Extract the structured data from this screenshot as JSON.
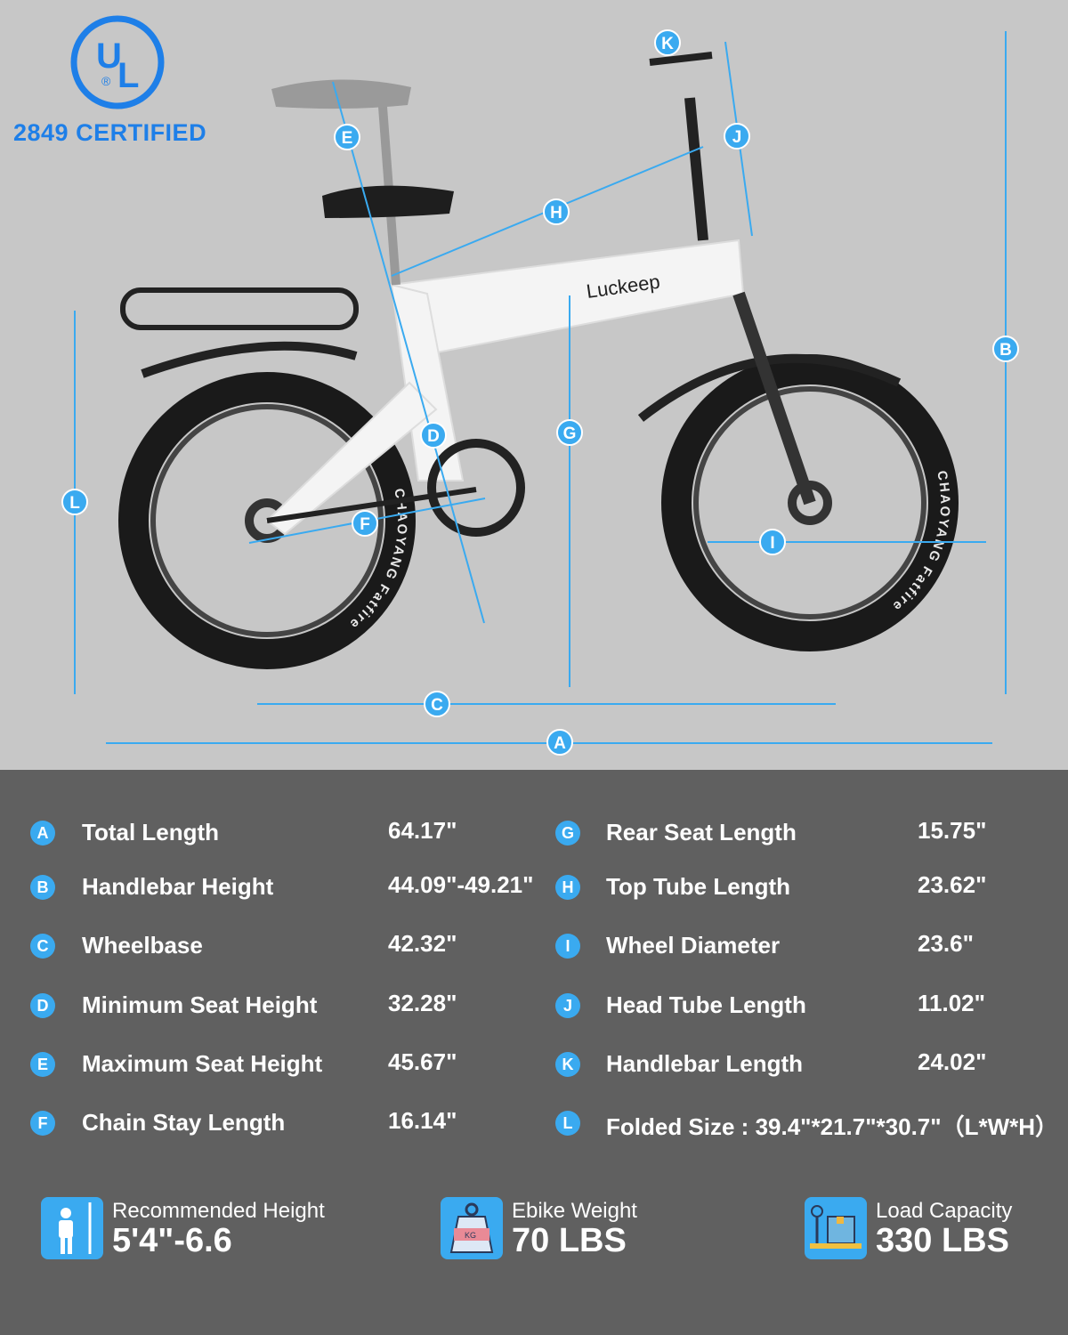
{
  "certification": {
    "logo_text": "UL",
    "label": "2849 CERTIFIED"
  },
  "brand": "Luckeep",
  "tire_text": "CHAOYANG Fatfire",
  "accent_color": "#3aaaf0",
  "diagram_markers": [
    "A",
    "B",
    "C",
    "D",
    "E",
    "F",
    "G",
    "H",
    "I",
    "J",
    "K",
    "L"
  ],
  "specs_left": [
    {
      "letter": "A",
      "label": "Total Length",
      "value": "64.17\""
    },
    {
      "letter": "B",
      "label": "Handlebar Height",
      "value": "44.09\"-49.21\""
    },
    {
      "letter": "C",
      "label": "Wheelbase",
      "value": "42.32\""
    },
    {
      "letter": "D",
      "label": "Minimum Seat Height",
      "value": "32.28\""
    },
    {
      "letter": "E",
      "label": "Maximum Seat Height",
      "value": "45.67\""
    },
    {
      "letter": "F",
      "label": "Chain Stay Length",
      "value": "16.14\""
    }
  ],
  "specs_right": [
    {
      "letter": "G",
      "label": "Rear Seat Length",
      "value": "15.75\""
    },
    {
      "letter": "H",
      "label": "Top Tube Length",
      "value": "23.62\""
    },
    {
      "letter": "I",
      "label": "Wheel Diameter",
      "value": "23.6\""
    },
    {
      "letter": "J",
      "label": "Head Tube Length",
      "value": "11.02\""
    },
    {
      "letter": "K",
      "label": "Handlebar Length",
      "value": "24.02\""
    },
    {
      "letter": "L",
      "label": "Folded Size : 39.4\"*21.7\"*30.7\"（L*W*H）",
      "value": ""
    }
  ],
  "stats": [
    {
      "icon": "person-height-icon",
      "label": "Recommended Height",
      "value": "5'4\"-6.6"
    },
    {
      "icon": "kg-weight-icon",
      "label": "Ebike Weight",
      "value": "70 LBS",
      "icon_text": "KG"
    },
    {
      "icon": "scale-box-icon",
      "label": "Load Capacity",
      "value": "330 LBS"
    }
  ]
}
